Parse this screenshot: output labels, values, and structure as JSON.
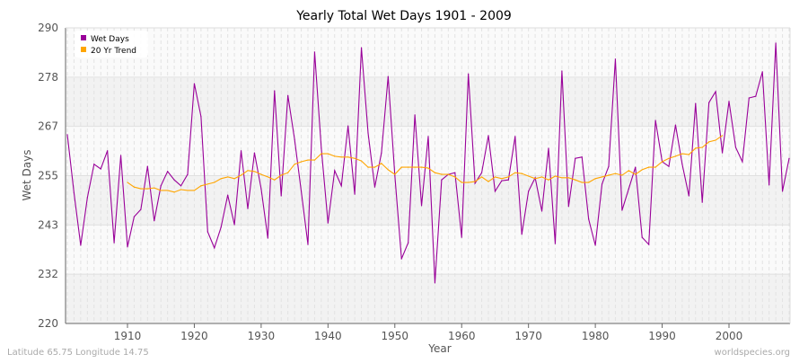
{
  "chart_data": {
    "type": "line",
    "title": "Yearly Total Wet Days 1901 - 2009",
    "xlabel": "Year",
    "ylabel": "Wet Days",
    "xlim": [
      1901,
      2009
    ],
    "ylim": [
      220,
      290
    ],
    "yticks": [
      220,
      232,
      243,
      255,
      267,
      278,
      290
    ],
    "xticks": [
      1910,
      1920,
      1930,
      1940,
      1950,
      1960,
      1970,
      1980,
      1990,
      2000
    ],
    "grid": true,
    "legend_position": "top-left",
    "series": [
      {
        "name": "Wet Days",
        "color": "#990099",
        "start_year": 1901,
        "values": [
          264.7,
          250.9,
          238.5,
          249.8,
          257.7,
          256.6,
          260.9,
          239.1,
          259.8,
          238.1,
          245.3,
          247.0,
          257.2,
          244.3,
          252.6,
          256.0,
          254.0,
          252.6,
          255.3,
          276.8,
          269.0,
          241.7,
          237.9,
          242.8,
          250.4,
          243.4,
          260.9,
          247.2,
          260.4,
          251.9,
          240.2,
          275.1,
          250.2,
          274.0,
          263.6,
          251.3,
          238.7,
          284.3,
          261.5,
          243.8,
          256.2,
          252.6,
          266.8,
          250.6,
          285.3,
          265.1,
          252.3,
          260.4,
          278.5,
          255.1,
          235.3,
          239.1,
          269.4,
          247.9,
          264.3,
          229.6,
          254.0,
          255.3,
          255.7,
          240.4,
          279.1,
          253.2,
          255.7,
          264.5,
          251.3,
          253.8,
          254.0,
          264.3,
          241.1,
          251.3,
          254.5,
          246.6,
          261.5,
          238.9,
          279.8,
          247.7,
          259.1,
          259.4,
          244.7,
          238.5,
          253.0,
          257.2,
          282.6,
          246.8,
          251.9,
          257.0,
          240.4,
          238.7,
          268.1,
          258.3,
          257.2,
          267.0,
          257.7,
          250.2,
          272.1,
          248.7,
          272.3,
          274.9,
          260.4,
          272.6,
          261.7,
          258.3,
          273.4,
          273.8,
          279.6,
          252.8,
          286.4,
          251.3,
          259.1
        ]
      },
      {
        "name": "20 Yr Trend",
        "color": "#ffa500",
        "start_year": 1910,
        "values": [
          253.4,
          252.3,
          251.9,
          251.9,
          252.1,
          251.5,
          251.5,
          251.1,
          251.7,
          251.5,
          251.5,
          252.6,
          253.0,
          253.4,
          254.3,
          254.7,
          254.3,
          255.1,
          256.2,
          256.0,
          255.3,
          254.7,
          254.0,
          255.1,
          255.7,
          257.7,
          258.3,
          258.7,
          258.7,
          260.2,
          260.2,
          259.6,
          259.4,
          259.4,
          259.1,
          258.5,
          257.0,
          257.0,
          257.9,
          256.4,
          255.3,
          257.0,
          257.0,
          257.0,
          257.0,
          256.8,
          255.7,
          255.3,
          255.3,
          254.7,
          253.4,
          253.4,
          253.6,
          254.7,
          253.6,
          254.7,
          254.3,
          254.7,
          255.7,
          255.5,
          254.9,
          254.3,
          254.7,
          254.0,
          254.9,
          254.5,
          254.5,
          254.0,
          253.4,
          253.4,
          254.3,
          254.7,
          255.1,
          255.5,
          255.1,
          256.2,
          255.3,
          256.4,
          257.0,
          257.0,
          258.3,
          259.1,
          259.6,
          260.2,
          260.0,
          261.5,
          261.7,
          263.0,
          263.4,
          264.5
        ]
      }
    ]
  },
  "footer": {
    "left": "Latitude 65.75 Longitude 14.75",
    "right": "worldspecies.org"
  }
}
